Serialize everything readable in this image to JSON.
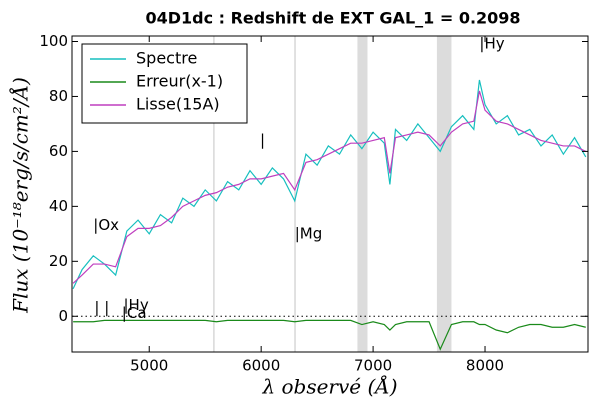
{
  "chart_data": {
    "type": "line",
    "title": "04D1dc : Redshift de EXT GAL_1 = 0.2098",
    "x_label": "λ observé (Å)",
    "y_label": "Flux (10⁻¹⁸erg/s/cm²/Å)",
    "x": [
      4320,
      4400,
      4500,
      4600,
      4700,
      4800,
      4900,
      5000,
      5100,
      5200,
      5300,
      5400,
      5500,
      5600,
      5700,
      5800,
      5900,
      6000,
      6100,
      6200,
      6300,
      6400,
      6500,
      6600,
      6700,
      6800,
      6900,
      7000,
      7100,
      7150,
      7200,
      7300,
      7400,
      7500,
      7600,
      7700,
      7800,
      7900,
      7950,
      8000,
      8100,
      8200,
      8300,
      8400,
      8500,
      8600,
      8700,
      8800,
      8900
    ],
    "series": [
      {
        "name": "Spectre",
        "color": "#17bfbf",
        "values": [
          10,
          17,
          22,
          19,
          15,
          31,
          35,
          30,
          37,
          34,
          43,
          40,
          46,
          42,
          49,
          46,
          53,
          48,
          54,
          50,
          42,
          59,
          55,
          62,
          59,
          66,
          61,
          67,
          63,
          48,
          68,
          64,
          70,
          65,
          60,
          69,
          73,
          68,
          86,
          77,
          70,
          73,
          66,
          68,
          62,
          66,
          59,
          65,
          58
        ]
      },
      {
        "name": "Erreur(x-1)",
        "color": "#1a8a1a",
        "values": [
          -2,
          -2,
          -2,
          -1.5,
          -1.5,
          -1.5,
          -1.5,
          -1.5,
          -1.5,
          -1.5,
          -1.5,
          -1.5,
          -1.5,
          -2,
          -1.5,
          -1.5,
          -1.5,
          -1.5,
          -1.5,
          -1.5,
          -2,
          -1.5,
          -1.5,
          -1.5,
          -1.5,
          -1.5,
          -3,
          -2,
          -3,
          -5,
          -3,
          -2,
          -2,
          -2,
          -12,
          -3,
          -2,
          -2,
          -3,
          -3,
          -5,
          -6,
          -4,
          -3,
          -3,
          -4,
          -4,
          -3,
          -4
        ]
      },
      {
        "name": "Lisse(15A)",
        "color": "#bf3fbf",
        "values": [
          12,
          15,
          19,
          19,
          18,
          29,
          32,
          32,
          33,
          36,
          40,
          42,
          44,
          45,
          47,
          48,
          50,
          50,
          51,
          52,
          46,
          56,
          57,
          59,
          61,
          63,
          63,
          64,
          65,
          52,
          65,
          66,
          67,
          66,
          62,
          67,
          70,
          71,
          82,
          75,
          71,
          70,
          68,
          66,
          64,
          63,
          62,
          62,
          60
        ]
      }
    ],
    "shaded_regions": [
      [
        5570,
        5585
      ],
      [
        6295,
        6310
      ],
      [
        6860,
        6950
      ],
      [
        7570,
        7700
      ]
    ],
    "reference_line": 0,
    "annotations": [
      {
        "text": "|Ox",
        "color": "#bf3fbf"
      },
      {
        "text": "|",
        "color": "#bf3fbf"
      },
      {
        "text": "|Mg",
        "color": "#1a8a1a"
      },
      {
        "text": "|Hy",
        "color": "#2020cc"
      },
      {
        "text": "| |",
        "color": "#2020cc"
      },
      {
        "text": "|Hy",
        "color": "#2020cc"
      },
      {
        "text": "|Ca",
        "color": "#e02020"
      }
    ],
    "xlim": [
      4310,
      8920
    ],
    "ylim": [
      -13,
      102
    ],
    "xticks": [
      5000,
      6000,
      7000,
      8000
    ],
    "yticks": [
      0,
      20,
      40,
      60,
      80,
      100
    ],
    "legend": "upper left",
    "grid": false
  }
}
